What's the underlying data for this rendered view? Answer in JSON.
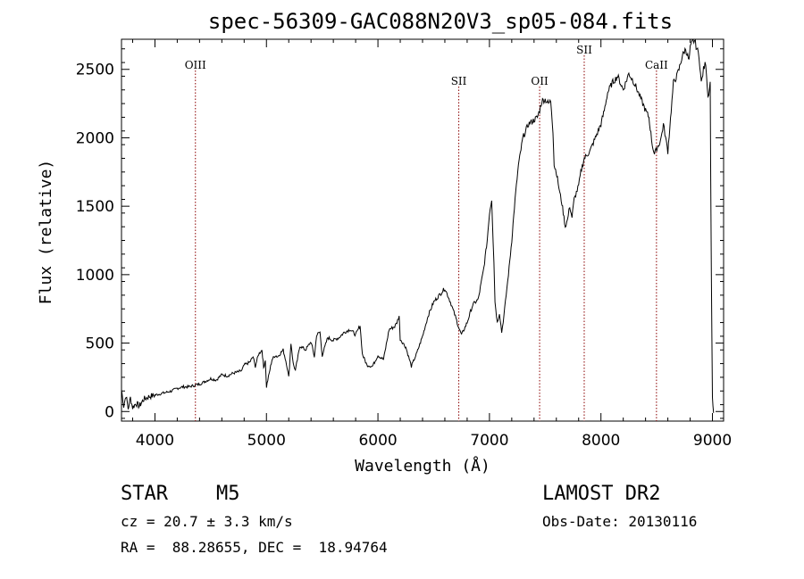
{
  "chart_data": {
    "type": "line",
    "title": "spec-56309-GAC088N20V3_sp05-084.fits",
    "xlabel": "Wavelength (Å)",
    "ylabel": "Flux (relative)",
    "xlim": [
      3700,
      9100
    ],
    "ylim": [
      -70,
      2720
    ],
    "xticks": [
      4000,
      5000,
      6000,
      7000,
      8000,
      9000
    ],
    "xtick_labels": [
      "4000",
      "5000",
      "6000",
      "7000",
      "8000",
      "9000"
    ],
    "yticks": [
      0,
      500,
      1000,
      1500,
      2000,
      2500
    ],
    "ytick_labels": [
      "0",
      "500",
      "1000",
      "1500",
      "2000",
      "2500"
    ],
    "grid": false,
    "series": [
      {
        "x": [
          3700,
          3720,
          3740,
          3760,
          3780,
          3800,
          3830,
          3860,
          3900,
          3950,
          4000,
          4050,
          4100,
          4150,
          4200,
          4250,
          4300,
          4350,
          4400,
          4450,
          4500,
          4550,
          4600,
          4650,
          4700,
          4750,
          4780,
          4800,
          4850,
          4880,
          4900,
          4930,
          4960,
          4975,
          4990,
          5000,
          5050,
          5080,
          5100,
          5150,
          5180,
          5200,
          5220,
          5240,
          5260,
          5300,
          5350,
          5400,
          5430,
          5450,
          5480,
          5500,
          5550,
          5600,
          5650,
          5700,
          5750,
          5800,
          5840,
          5860,
          5900,
          5950,
          6000,
          6050,
          6100,
          6150,
          6170,
          6190,
          6200,
          6250,
          6300,
          6350,
          6400,
          6450,
          6500,
          6550,
          6600,
          6650,
          6700,
          6730,
          6750,
          6800,
          6850,
          6900,
          6950,
          6980,
          7000,
          7020,
          7040,
          7050,
          7070,
          7090,
          7110,
          7130,
          7150,
          7170,
          7200,
          7230,
          7260,
          7300,
          7350,
          7400,
          7430,
          7450,
          7470,
          7500,
          7530,
          7550,
          7570,
          7580,
          7600,
          7610,
          7630,
          7650,
          7680,
          7700,
          7720,
          7740,
          7760,
          7780,
          7800,
          7820,
          7850,
          7900,
          7950,
          8000,
          8030,
          8060,
          8100,
          8150,
          8200,
          8250,
          8300,
          8350,
          8400,
          8430,
          8460,
          8480,
          8500,
          8520,
          8540,
          8560,
          8580,
          8600,
          8630,
          8650,
          8680,
          8700,
          8730,
          8760,
          8790,
          8800,
          8820,
          8840,
          8860,
          8880,
          8900,
          8920,
          8940,
          8960,
          8980,
          8990,
          9000,
          9010
        ],
        "y": [
          160,
          40,
          120,
          20,
          100,
          30,
          60,
          40,
          90,
          110,
          120,
          130,
          140,
          150,
          170,
          180,
          180,
          190,
          200,
          220,
          240,
          230,
          270,
          260,
          280,
          290,
          300,
          340,
          360,
          400,
          330,
          420,
          450,
          320,
          380,
          180,
          380,
          410,
          400,
          450,
          350,
          250,
          500,
          350,
          300,
          480,
          450,
          510,
          400,
          560,
          580,
          410,
          540,
          520,
          540,
          580,
          600,
          560,
          630,
          420,
          340,
          330,
          410,
          380,
          600,
          620,
          650,
          700,
          530,
          470,
          330,
          430,
          550,
          700,
          800,
          850,
          900,
          800,
          680,
          600,
          560,
          650,
          780,
          820,
          1050,
          1250,
          1450,
          1550,
          1100,
          800,
          650,
          720,
          580,
          700,
          850,
          1000,
          1250,
          1550,
          1800,
          2000,
          2100,
          2130,
          2150,
          2200,
          2270,
          2280,
          2250,
          2270,
          2050,
          1800,
          1750,
          1700,
          1600,
          1520,
          1350,
          1400,
          1500,
          1420,
          1550,
          1600,
          1650,
          1750,
          1850,
          1900,
          2000,
          2100,
          2200,
          2330,
          2400,
          2450,
          2350,
          2470,
          2400,
          2300,
          2200,
          2150,
          1950,
          1880,
          1920,
          1950,
          2000,
          2100,
          2000,
          1900,
          2200,
          2400,
          2450,
          2500,
          2600,
          2650,
          2560,
          2650,
          2700,
          2710,
          2650,
          2600,
          2400,
          2500,
          2550,
          2300,
          2400,
          1000,
          100,
          -10
        ]
      }
    ],
    "annotations": [
      {
        "label": "OIII",
        "x": 4363
      },
      {
        "label": "SII",
        "x": 6725
      },
      {
        "label": "OII",
        "x": 7450
      },
      {
        "label": "SII",
        "x": 7850
      },
      {
        "label": "CaII",
        "x": 8498
      }
    ],
    "annotation_color": "#8b0000"
  },
  "info": {
    "object_class": "STAR",
    "subclass": "M5",
    "survey": "LAMOST DR2",
    "cz": "cz = 20.7 ± 3.3 km/s",
    "obs_date": "Obs-Date: 20130116",
    "radec": "RA =  88.28655, DEC =  18.94764"
  }
}
